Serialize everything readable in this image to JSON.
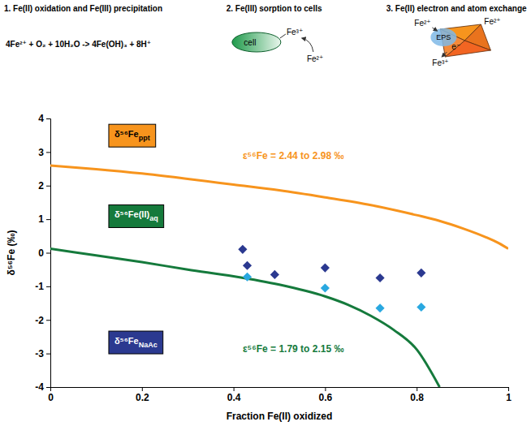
{
  "chart_data": {
    "type": "line",
    "x_label": "Fraction Fe(II) oxidized",
    "y_label": "δ⁵⁶Fe (‰)",
    "xlim": [
      0,
      1
    ],
    "xticks": [
      0,
      0.2,
      0.4,
      0.6,
      0.8,
      1
    ],
    "ylim": [
      -4,
      4
    ],
    "yticks": [
      -4,
      -3,
      -2,
      -1,
      0,
      1,
      2,
      3,
      4
    ],
    "grid": false,
    "annotations": [
      "ε⁵⁶Fe = 2.44 to 2.98 ‰",
      "ε⁵⁶Fe = 1.79 to 2.15 ‰"
    ],
    "series": [
      {
        "name": "δ⁵⁶Feppt",
        "type": "line",
        "line_style": "solid",
        "color": "#f7941d",
        "x": [
          0,
          0.1,
          0.2,
          0.3,
          0.4,
          0.5,
          0.6,
          0.7,
          0.8,
          0.85,
          0.9,
          0.95,
          0.98,
          1
        ],
        "values": [
          2.6,
          2.49,
          2.36,
          2.2,
          2.03,
          1.86,
          1.65,
          1.42,
          1.12,
          0.95,
          0.73,
          0.47,
          0.28,
          0.12
        ]
      },
      {
        "name": "δ⁵⁶Fe(II)aq",
        "type": "line",
        "line_style": "solid",
        "color": "#157a3c",
        "x": [
          0,
          0.1,
          0.2,
          0.3,
          0.4,
          0.5,
          0.6,
          0.65,
          0.7,
          0.75,
          0.8,
          0.85
        ],
        "values": [
          0.12,
          -0.08,
          -0.28,
          -0.5,
          -0.7,
          -0.95,
          -1.3,
          -1.55,
          -1.88,
          -2.3,
          -2.88,
          -4.0
        ]
      },
      {
        "name": "δ⁵⁶FeNaAc",
        "type": "scatter",
        "marker": "diamond",
        "color": "#2b3990",
        "x": [
          0.42,
          0.43,
          0.49,
          0.6,
          0.72,
          0.81
        ],
        "values": [
          0.1,
          -0.38,
          -0.65,
          -0.45,
          -0.75,
          -0.6
        ]
      },
      {
        "type": "scatter",
        "marker": "diamond",
        "color": "#29a8e0",
        "x": [
          0.43,
          0.6,
          0.72,
          0.81
        ],
        "values": [
          -0.72,
          -1.05,
          -1.65,
          -1.62
        ]
      }
    ]
  },
  "schematic": {
    "panels": [
      {
        "title": "1. Fe(II) oxidation and Fe(III) precipitation",
        "labels": [
          "4Fe²⁺ + O₂ + 10H₂O -> 4Fe(OH)₃ + 8H⁺"
        ]
      },
      {
        "title": "2. Fe(III) sorption to cells",
        "labels": [
          "cell",
          "Fe³⁺",
          "Fe²⁺"
        ]
      },
      {
        "title": "3. Fe(II) electron and atom exchange",
        "labels": [
          "EPS",
          "Fe²⁺",
          "Fe²⁺",
          "e⁻",
          "Fe³⁺"
        ]
      }
    ]
  }
}
